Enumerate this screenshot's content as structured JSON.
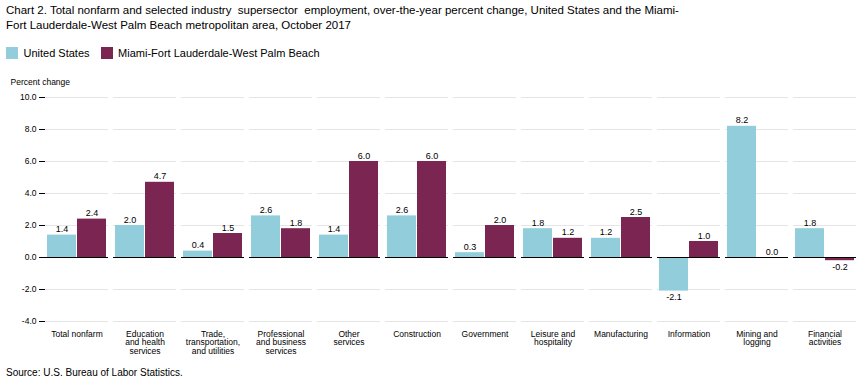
{
  "chart_data": {
    "type": "bar",
    "title": "Chart 2. Total nonfarm and selected industry  supersector  employment, over-the-year percent change, United States and the Miami-\nFort Lauderdale-West Palm Beach metropolitan area, October 2017",
    "y_label": "Percent change",
    "source": "Source: U.S. Bureau of Labor Statistics.",
    "categories": [
      "Total nonfarm",
      "Education\nand health\nservices",
      "Trade,\ntransportation,\nand utilities",
      "Professional\nand business\nservices",
      "Other\nservices",
      "Construction",
      "Government",
      "Leisure and\nhospitality",
      "Manufacturing",
      "Information",
      "Mining and\nlogging",
      "Financial\nactivities"
    ],
    "series": [
      {
        "name": "United States",
        "color": "#92CDDC",
        "values": [
          1.4,
          2.0,
          0.4,
          2.6,
          1.4,
          2.6,
          0.3,
          1.8,
          1.2,
          -2.1,
          8.2,
          1.8
        ],
        "value_labels": [
          "1.4",
          "2.0",
          "0.4",
          "2.6",
          "1.4",
          "2.6",
          "0.3",
          "1.8",
          "1.2",
          "-2.1",
          "8.2",
          "1.8"
        ]
      },
      {
        "name": "Miami-Fort Lauderdale-West Palm Beach",
        "color": "#7B2552",
        "values": [
          2.4,
          4.7,
          1.5,
          1.8,
          6.0,
          6.0,
          2.0,
          1.2,
          2.5,
          1.0,
          0.0,
          -0.2
        ],
        "value_labels": [
          "2.4",
          "4.7",
          "1.5",
          "1.8",
          "6.0",
          "6.0",
          "2.0",
          "1.2",
          "2.5",
          "1.0",
          "0.0",
          "-0.2"
        ]
      }
    ],
    "ylim": [
      -4.0,
      10.0
    ],
    "yticks": [
      {
        "value": -4.0,
        "label": "-4.0"
      },
      {
        "value": -2.0,
        "label": "-2.0"
      },
      {
        "value": 0.0,
        "label": "0.0"
      },
      {
        "value": 2.0,
        "label": "2.0"
      },
      {
        "value": 4.0,
        "label": "4.0"
      },
      {
        "value": 6.0,
        "label": "6.0"
      },
      {
        "value": 8.0,
        "label": "8.0"
      },
      {
        "value": 10.0,
        "label": "10.0"
      }
    ],
    "grid": true,
    "legend": "upper left",
    "data_labels": true
  }
}
